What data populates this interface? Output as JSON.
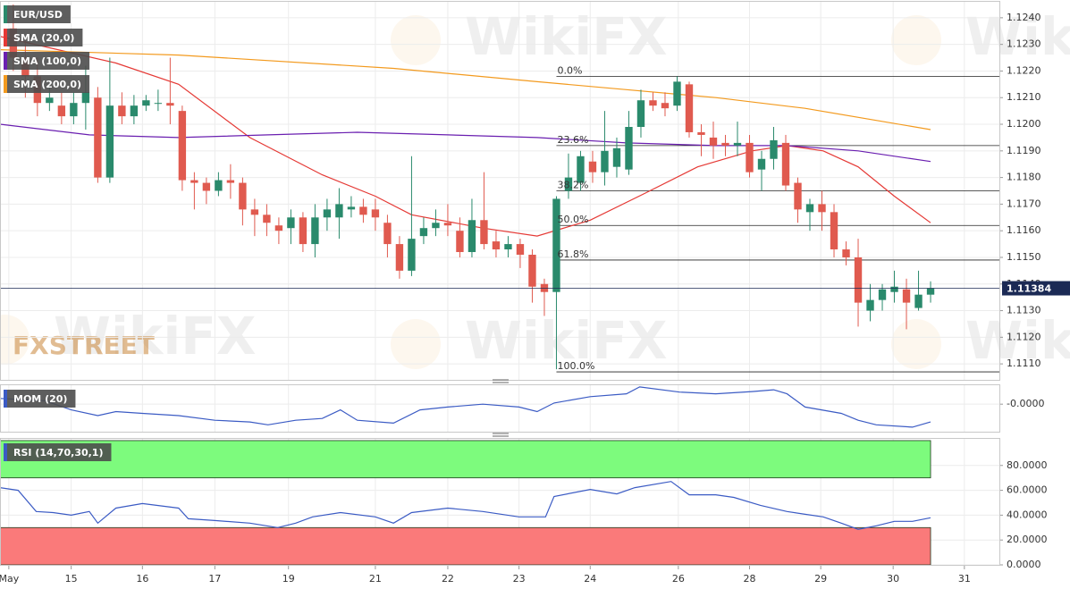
{
  "chart_data": [
    {
      "type": "candlestick",
      "name": "EUR/USD",
      "up_color": "#2a8a6c",
      "down_color": "#e05a4f",
      "watermark": "WikiFX",
      "logo": "FXSTREET",
      "xlim": [
        -1.1,
        81.7
      ],
      "ylim": [
        1.1104,
        1.1246
      ],
      "yticks": [
        {
          "value": 1.111,
          "label": "1.1110"
        },
        {
          "value": 1.112,
          "label": "1.1120"
        },
        {
          "value": 1.113,
          "label": "1.1130"
        },
        {
          "value": 1.114,
          "label": "1.1140"
        },
        {
          "value": 1.115,
          "label": "1.1150"
        },
        {
          "value": 1.116,
          "label": "1.1160"
        },
        {
          "value": 1.117,
          "label": "1.1170"
        },
        {
          "value": 1.118,
          "label": "1.1180"
        },
        {
          "value": 1.119,
          "label": "1.1190"
        },
        {
          "value": 1.12,
          "label": "1.1200"
        },
        {
          "value": 1.121,
          "label": "1.1210"
        },
        {
          "value": 1.122,
          "label": "1.1220"
        },
        {
          "value": 1.123,
          "label": "1.1230"
        },
        {
          "value": 1.124,
          "label": "1.1240"
        }
      ],
      "grid": true,
      "last_value": 1.11384,
      "x": [
        0,
        1,
        2,
        3,
        4,
        5,
        6,
        7,
        8,
        9,
        10,
        11,
        12,
        13,
        14,
        15,
        16,
        17,
        18,
        19,
        20,
        21,
        22,
        23,
        24,
        25,
        26,
        27,
        28,
        29,
        30,
        31,
        32,
        33,
        34,
        35,
        36,
        37,
        38,
        39,
        40,
        41,
        42,
        43,
        44,
        45,
        46,
        47,
        48,
        49,
        50,
        51,
        52,
        53,
        54,
        55,
        56,
        57,
        58,
        59,
        60,
        61,
        62,
        63,
        64,
        65,
        66,
        67,
        68,
        69,
        70,
        71,
        72,
        73,
        74,
        75,
        76
      ],
      "open": [
        1.1236,
        1.1225,
        1.1218,
        1.1208,
        1.1207,
        1.1203,
        1.1208,
        1.121,
        1.118,
        1.1207,
        1.1203,
        1.1207,
        1.1208,
        1.1208,
        1.1205,
        1.1179,
        1.1178,
        1.1175,
        1.1179,
        1.1178,
        1.1168,
        1.1166,
        1.1162,
        1.1161,
        1.1165,
        1.1155,
        1.1165,
        1.1165,
        1.1168,
        1.1169,
        1.1168,
        1.1163,
        1.1155,
        1.1145,
        1.1158,
        1.1161,
        1.1163,
        1.116,
        1.1152,
        1.1164,
        1.1156,
        1.1153,
        1.1155,
        1.1151,
        1.114,
        1.1137,
        1.1175,
        1.1178,
        1.1186,
        1.1182,
        1.1184,
        1.1183,
        1.1199,
        1.1209,
        1.1208,
        1.1207,
        1.1215,
        1.1197,
        1.1195,
        1.1193,
        1.1192,
        1.1193,
        1.1183,
        1.1187,
        1.1193,
        1.1178,
        1.1167,
        1.117,
        1.1167,
        1.1153,
        1.115,
        1.113,
        1.1134,
        1.1137,
        1.1138,
        1.1131,
        1.1136
      ],
      "high": [
        1.1245,
        1.1232,
        1.1225,
        1.1215,
        1.1212,
        1.1212,
        1.1222,
        1.1214,
        1.1225,
        1.1212,
        1.1211,
        1.1211,
        1.1213,
        1.1225,
        1.1207,
        1.1182,
        1.118,
        1.1182,
        1.1185,
        1.118,
        1.1172,
        1.117,
        1.1165,
        1.1168,
        1.1167,
        1.117,
        1.1172,
        1.1176,
        1.1173,
        1.1172,
        1.1172,
        1.1166,
        1.1158,
        1.1188,
        1.1165,
        1.1168,
        1.117,
        1.1165,
        1.1172,
        1.1182,
        1.116,
        1.1158,
        1.1157,
        1.1153,
        1.1142,
        1.1173,
        1.1189,
        1.119,
        1.119,
        1.1205,
        1.1195,
        1.1205,
        1.1213,
        1.1212,
        1.1212,
        1.1218,
        1.1216,
        1.12,
        1.1201,
        1.1196,
        1.1201,
        1.1196,
        1.119,
        1.1199,
        1.1196,
        1.118,
        1.1172,
        1.1175,
        1.117,
        1.1156,
        1.1157,
        1.114,
        1.114,
        1.1145,
        1.1142,
        1.1145,
        1.1141
      ],
      "low": [
        1.122,
        1.121,
        1.1203,
        1.1205,
        1.12,
        1.12,
        1.1198,
        1.1178,
        1.1178,
        1.12,
        1.12,
        1.1205,
        1.1205,
        1.12,
        1.1175,
        1.1168,
        1.117,
        1.1173,
        1.1172,
        1.1162,
        1.1158,
        1.1158,
        1.1155,
        1.1155,
        1.1152,
        1.115,
        1.116,
        1.1157,
        1.1165,
        1.1163,
        1.116,
        1.115,
        1.1142,
        1.1143,
        1.1155,
        1.1158,
        1.1158,
        1.115,
        1.115,
        1.1153,
        1.115,
        1.115,
        1.1146,
        1.1133,
        1.1128,
        1.1108,
        1.1172,
        1.1175,
        1.1178,
        1.1177,
        1.118,
        1.1181,
        1.1195,
        1.1205,
        1.1203,
        1.1205,
        1.1195,
        1.1188,
        1.1187,
        1.1188,
        1.1188,
        1.118,
        1.1175,
        1.1183,
        1.1175,
        1.1163,
        1.116,
        1.116,
        1.115,
        1.1147,
        1.1124,
        1.1126,
        1.113,
        1.1133,
        1.1123,
        1.113,
        1.1133
      ],
      "close": [
        1.1225,
        1.1218,
        1.1208,
        1.121,
        1.1203,
        1.1208,
        1.1212,
        1.118,
        1.1207,
        1.1203,
        1.1207,
        1.1209,
        1.1208,
        1.1207,
        1.1179,
        1.1178,
        1.1175,
        1.1179,
        1.1178,
        1.1168,
        1.1166,
        1.1163,
        1.116,
        1.1165,
        1.1155,
        1.1165,
        1.1168,
        1.117,
        1.1169,
        1.1166,
        1.1165,
        1.1155,
        1.1145,
        1.1157,
        1.1161,
        1.1163,
        1.1162,
        1.1152,
        1.1164,
        1.1155,
        1.1153,
        1.1155,
        1.1151,
        1.1139,
        1.1137,
        1.1172,
        1.118,
        1.1188,
        1.1182,
        1.119,
        1.1191,
        1.1199,
        1.1209,
        1.1207,
        1.1206,
        1.1216,
        1.1197,
        1.1196,
        1.1192,
        1.1192,
        1.1193,
        1.1182,
        1.1187,
        1.1194,
        1.1177,
        1.1168,
        1.117,
        1.1167,
        1.1153,
        1.115,
        1.1133,
        1.1134,
        1.1138,
        1.1139,
        1.1133,
        1.1136,
        1.11384
      ],
      "series": [
        {
          "name": "SMA (20,0)",
          "color": "#e53935",
          "x": [
            -1.1,
            8.5,
            13.7,
            19.6,
            25.6,
            30,
            33,
            38.9,
            43.4,
            47.8,
            52.3,
            56.7,
            61.2,
            64.1,
            67.1,
            70,
            73,
            76
          ],
          "values": [
            1.1233,
            1.1223,
            1.1215,
            1.1195,
            1.1181,
            1.1173,
            1.1166,
            1.1161,
            1.1158,
            1.1164,
            1.1174,
            1.1184,
            1.119,
            1.1192,
            1.119,
            1.1184,
            1.1173,
            1.1163
          ]
        },
        {
          "name": "SMA (100,0)",
          "color": "#6a1fb0",
          "x": [
            -1.1,
            6.3,
            13.7,
            21.1,
            28.5,
            36,
            43.4,
            50.8,
            58.2,
            64.1,
            70,
            76
          ],
          "values": [
            1.12,
            1.1196,
            1.1195,
            1.1196,
            1.1197,
            1.1196,
            1.1195,
            1.1193,
            1.1192,
            1.1192,
            1.119,
            1.1186
          ]
        },
        {
          "name": "SMA (200,0)",
          "color": "#f39a1e",
          "x": [
            -1.1,
            13.7,
            31.5,
            43.4,
            50.8,
            58.2,
            65.6,
            76
          ],
          "values": [
            1.1228,
            1.1226,
            1.1221,
            1.1216,
            1.1213,
            1.121,
            1.1206,
            1.1198
          ]
        }
      ],
      "levels": [
        {
          "label": "0.0%",
          "value": 1.1218,
          "x": 45
        },
        {
          "label": "23.6%",
          "value": 1.1192,
          "x": 45
        },
        {
          "label": "38.2%",
          "value": 1.1175,
          "x": 45
        },
        {
          "label": "50.0%",
          "value": 1.1162,
          "x": 45
        },
        {
          "label": "61.8%",
          "value": 1.1149,
          "x": 45
        },
        {
          "label": "100.0%",
          "value": 1.1107,
          "x": 45
        }
      ]
    },
    {
      "type": "line",
      "name": "MOM (20)",
      "color": "#3b5bc4",
      "xlim": [
        -1.1,
        81.7
      ],
      "ylim": [
        -0.0048,
        0.0033
      ],
      "yticks": [
        {
          "value": 0,
          "label": "-0.0000"
        }
      ],
      "x": [
        -1.1,
        2.6,
        4.8,
        7.0,
        8.5,
        10.7,
        13.7,
        16.7,
        19.6,
        21.1,
        23.4,
        25.6,
        27.1,
        28.5,
        31.5,
        33.7,
        36,
        38.9,
        41.9,
        43.4,
        44.8,
        47.8,
        50.8,
        51.9,
        55.2,
        58.2,
        61.2,
        63,
        64.1,
        65.6,
        68.6,
        70,
        71.5,
        74.5,
        76
      ],
      "values": [
        0.001,
        0.0006,
        -0.001,
        -0.002,
        -0.0013,
        -0.0016,
        -0.002,
        -0.0028,
        -0.0031,
        -0.0036,
        -0.0028,
        -0.0025,
        -0.001,
        -0.0028,
        -0.0033,
        -0.001,
        -0.0005,
        0.0,
        -0.0005,
        -0.0013,
        0.0002,
        0.0013,
        0.0018,
        0.003,
        0.0021,
        0.0018,
        0.0022,
        0.0025,
        0.0018,
        -0.0005,
        -0.0016,
        -0.0028,
        -0.0036,
        -0.004,
        -0.0031
      ]
    },
    {
      "type": "line",
      "name": "RSI (14,70,30,1)",
      "color": "#3b5bc4",
      "xlim": [
        -1.1,
        81.7
      ],
      "ylim": [
        0,
        101.4
      ],
      "yticks": [
        {
          "value": 0,
          "label": "0.0000"
        },
        {
          "value": 20,
          "label": "20.0000"
        },
        {
          "value": 40,
          "label": "40.0000"
        },
        {
          "value": 60,
          "label": "60.0000"
        },
        {
          "value": 80,
          "label": "80.0000"
        }
      ],
      "bands": [
        {
          "from": 70,
          "to": 100,
          "color": "#7dfb7d"
        },
        {
          "from": 0,
          "to": 30,
          "color": "#fa7a7a"
        }
      ],
      "xticks": [
        {
          "value": -0.37,
          "label": "May"
        },
        {
          "value": 4.8,
          "label": "15"
        },
        {
          "value": 10.7,
          "label": "16"
        },
        {
          "value": 16.7,
          "label": "17"
        },
        {
          "value": 22.8,
          "label": "19"
        },
        {
          "value": 30,
          "label": "21"
        },
        {
          "value": 36,
          "label": "22"
        },
        {
          "value": 41.9,
          "label": "23"
        },
        {
          "value": 47.8,
          "label": "24"
        },
        {
          "value": 55.1,
          "label": "26"
        },
        {
          "value": 61,
          "label": "28"
        },
        {
          "value": 66.9,
          "label": "29"
        },
        {
          "value": 72.9,
          "label": "30"
        },
        {
          "value": 78.8,
          "label": "31"
        }
      ],
      "x": [
        -1.1,
        0.4,
        1.9,
        3.3,
        4.8,
        6.3,
        7.0,
        8.5,
        10.7,
        13.7,
        14.5,
        16.7,
        19.6,
        21.9,
        23.4,
        24.8,
        27.1,
        30,
        31.5,
        33,
        36,
        38.9,
        41.9,
        44.1,
        44.8,
        47.8,
        50,
        51.5,
        54.5,
        56,
        58.2,
        59.7,
        61.9,
        64.1,
        65.6,
        67.1,
        68.6,
        70,
        71.5,
        73,
        74.5,
        76
      ],
      "values": [
        62.1,
        60.0,
        42.9,
        42.1,
        40.0,
        42.9,
        33.6,
        45.7,
        49.3,
        45.7,
        37.1,
        35.7,
        33.6,
        30.0,
        33.6,
        38.6,
        42.1,
        38.6,
        33.6,
        42.1,
        45.7,
        42.9,
        38.6,
        38.6,
        55.0,
        60.7,
        57.1,
        62.1,
        67.1,
        56.4,
        56.4,
        54.3,
        47.9,
        42.9,
        40.7,
        38.6,
        33.6,
        28.6,
        31.4,
        35.0,
        35.0,
        37.9
      ]
    }
  ]
}
